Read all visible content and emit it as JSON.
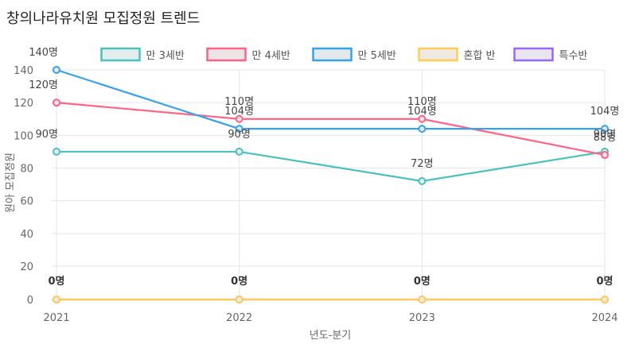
{
  "chart_data": {
    "type": "line",
    "title": "창의나라유치원 모집정원 트렌드",
    "xlabel": "년도-분기",
    "ylabel": "원아 모집정원",
    "categories": [
      "2021",
      "2022",
      "2023",
      "2024"
    ],
    "y_ticks": [
      "0",
      "20",
      "40",
      "60",
      "80",
      "100",
      "120",
      "140"
    ],
    "ylim": [
      0,
      140
    ],
    "grid": true,
    "legend_position": "top",
    "value_suffix": "명",
    "series": [
      {
        "name": "만 3세반",
        "color": "#4bc0c0",
        "fill": "#e4eded",
        "values": [
          90,
          90,
          72,
          90
        ]
      },
      {
        "name": "만 4세반",
        "color": "#ff6384",
        "fill": "#ece4e6",
        "values": [
          120,
          110,
          110,
          88
        ]
      },
      {
        "name": "만 5세반",
        "color": "#36a2eb",
        "fill": "#e3e8ec",
        "values": [
          140,
          104,
          104,
          104
        ]
      },
      {
        "name": "혼합 반",
        "color": "#ffcd56",
        "fill": "#eeeae3",
        "values": [
          0,
          0,
          0,
          0
        ]
      },
      {
        "name": "특수반",
        "color": "#9966ff",
        "fill": "#e9e6f0",
        "values": [
          0,
          0,
          0,
          0
        ]
      }
    ]
  }
}
